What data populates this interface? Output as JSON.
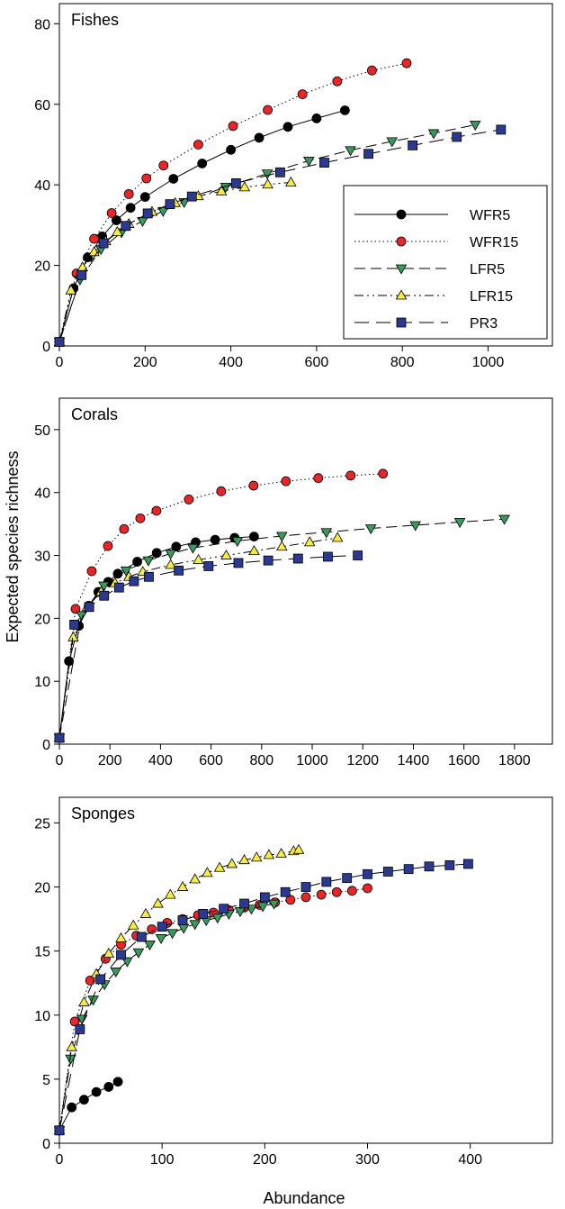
{
  "figure": {
    "ylabel": "Expected species richness",
    "xlabel": "Abundance"
  },
  "series_styles": {
    "WFR5": {
      "marker": "circle",
      "fill": "#000000",
      "dash": ""
    },
    "WFR15": {
      "marker": "circle",
      "fill": "#e8262a",
      "dash": "1.5,3"
    },
    "LFR5": {
      "marker": "triangle-down",
      "fill": "#3a9a5b",
      "dash": "12,6"
    },
    "LFR15": {
      "marker": "triangle-up",
      "fill": "#f5ec45",
      "dash": "10,4,2,4,2,4"
    },
    "PR3": {
      "marker": "square",
      "fill": "#2b3a8f",
      "dash": "16,8"
    }
  },
  "chart_data": [
    {
      "type": "line",
      "title": "Fishes",
      "xlim": [
        0,
        1150
      ],
      "ylim": [
        0,
        85
      ],
      "xticks": [
        0,
        200,
        400,
        600,
        800,
        1000
      ],
      "yticks": [
        0,
        20,
        40,
        60,
        80
      ],
      "legend": {
        "position": "center-right",
        "entries": [
          "WFR5",
          "WFR15",
          "LFR5",
          "LFR15",
          "PR3"
        ]
      },
      "series": [
        {
          "name": "WFR5",
          "x": [
            0,
            33,
            66,
            100,
            133,
            166,
            200,
            266,
            333,
            400,
            466,
            533,
            600,
            666
          ],
          "y": [
            1,
            14.3,
            22,
            27.2,
            31.2,
            34.3,
            37,
            41.5,
            45.3,
            48.7,
            51.7,
            54.4,
            56.5,
            58.5
          ]
        },
        {
          "name": "WFR15",
          "x": [
            0,
            40,
            81,
            122,
            162,
            203,
            243,
            324,
            405,
            486,
            567,
            648,
            729,
            810
          ],
          "y": [
            1,
            18,
            26.6,
            33,
            37.7,
            41.6,
            44.8,
            50,
            54.6,
            58.6,
            62.5,
            65.7,
            68.4,
            70.2
          ]
        },
        {
          "name": "LFR5",
          "x": [
            0,
            48,
            97,
            145,
            194,
            242,
            291,
            388,
            485,
            582,
            679,
            776,
            873,
            970
          ],
          "y": [
            1,
            16.5,
            24,
            28.2,
            31,
            33.5,
            35.7,
            39.5,
            42.8,
            46,
            48.6,
            50.8,
            52.8,
            54.9
          ]
        },
        {
          "name": "LFR15",
          "x": [
            0,
            27,
            54,
            81,
            108,
            135,
            162,
            216,
            270,
            324,
            378,
            432,
            486,
            540
          ],
          "y": [
            1,
            13.8,
            19.5,
            23.3,
            26,
            28.3,
            30.3,
            33.3,
            35.5,
            37.2,
            38.4,
            39.4,
            40.1,
            40.6
          ]
        },
        {
          "name": "PR3",
          "x": [
            0,
            52,
            103,
            155,
            206,
            258,
            309,
            412,
            515,
            618,
            721,
            824,
            927,
            1030
          ],
          "y": [
            1,
            17.6,
            25.5,
            29.8,
            32.9,
            35.2,
            37.1,
            40.4,
            43.1,
            45.5,
            47.7,
            49.8,
            51.9,
            53.7
          ]
        }
      ]
    },
    {
      "type": "line",
      "title": "Corals",
      "xlim": [
        0,
        1950
      ],
      "ylim": [
        0,
        55
      ],
      "xticks": [
        0,
        200,
        400,
        600,
        800,
        1000,
        1200,
        1400,
        1600,
        1800
      ],
      "yticks": [
        0,
        10,
        20,
        30,
        40,
        50
      ],
      "series": [
        {
          "name": "WFR5",
          "x": [
            0,
            38,
            77,
            116,
            154,
            193,
            231,
            308,
            385,
            462,
            539,
            616,
            693,
            770
          ],
          "y": [
            1,
            13.2,
            18.8,
            22,
            24.2,
            25.8,
            27.1,
            29,
            30.4,
            31.4,
            32.1,
            32.5,
            32.8,
            33
          ]
        },
        {
          "name": "WFR15",
          "x": [
            0,
            64,
            128,
            192,
            256,
            320,
            384,
            512,
            640,
            768,
            896,
            1024,
            1152,
            1280
          ],
          "y": [
            1,
            21.5,
            27.5,
            31.5,
            34.2,
            35.9,
            37.1,
            38.9,
            40.2,
            41.1,
            41.8,
            42.3,
            42.7,
            43
          ]
        },
        {
          "name": "LFR5",
          "x": [
            0,
            88,
            176,
            264,
            352,
            440,
            528,
            704,
            880,
            1056,
            1232,
            1408,
            1584,
            1760
          ],
          "y": [
            1,
            20.5,
            25.2,
            27.6,
            29.2,
            30.3,
            31.2,
            32.3,
            33.1,
            33.7,
            34.3,
            34.8,
            35.3,
            35.8
          ]
        },
        {
          "name": "LFR15",
          "x": [
            0,
            55,
            110,
            165,
            220,
            275,
            330,
            440,
            550,
            660,
            770,
            880,
            990,
            1100
          ],
          "y": [
            1,
            17,
            21.8,
            24.2,
            25.6,
            26.6,
            27.4,
            28.5,
            29.3,
            30,
            30.7,
            31.4,
            32.1,
            32.8
          ]
        },
        {
          "name": "PR3",
          "x": [
            0,
            59,
            118,
            177,
            236,
            295,
            354,
            472,
            590,
            708,
            826,
            944,
            1062,
            1180
          ],
          "y": [
            1,
            19,
            21.8,
            23.6,
            24.9,
            25.9,
            26.6,
            27.6,
            28.3,
            28.8,
            29.2,
            29.5,
            29.8,
            30
          ]
        }
      ]
    },
    {
      "type": "line",
      "title": "Sponges",
      "xlim": [
        0,
        480
      ],
      "ylim": [
        0,
        27
      ],
      "xticks": [
        0,
        100,
        200,
        300,
        400
      ],
      "yticks": [
        0,
        5,
        10,
        15,
        20,
        25
      ],
      "series": [
        {
          "name": "WFR5",
          "x": [
            0,
            12,
            24,
            36,
            48,
            57
          ],
          "y": [
            1,
            2.8,
            3.4,
            4,
            4.4,
            4.8
          ]
        },
        {
          "name": "WFR15",
          "x": [
            0,
            15,
            30,
            45,
            60,
            75,
            90,
            105,
            120,
            135,
            150,
            165,
            180,
            195,
            210,
            225,
            240,
            255,
            270,
            285,
            300
          ],
          "y": [
            1,
            9.5,
            12.7,
            14.4,
            15.5,
            16.2,
            16.7,
            17.2,
            17.5,
            17.8,
            18,
            18.2,
            18.4,
            18.6,
            18.8,
            19,
            19.2,
            19.4,
            19.6,
            19.7,
            19.9
          ]
        },
        {
          "name": "LFR5",
          "x": [
            0,
            11,
            22,
            33,
            44,
            55,
            66,
            77,
            88,
            99,
            110,
            121,
            132,
            143,
            154,
            165,
            176,
            187,
            198,
            209
          ],
          "y": [
            1,
            6.6,
            9.7,
            11.2,
            12.4,
            13.4,
            14.2,
            14.9,
            15.5,
            16,
            16.4,
            16.8,
            17.1,
            17.4,
            17.6,
            17.9,
            18.1,
            18.3,
            18.5,
            18.7
          ]
        },
        {
          "name": "LFR15",
          "x": [
            0,
            12,
            24,
            36,
            48,
            60,
            72,
            84,
            96,
            108,
            120,
            132,
            144,
            156,
            168,
            180,
            192,
            204,
            216,
            228,
            233
          ],
          "y": [
            1,
            7.5,
            11,
            13.2,
            14.8,
            16,
            17,
            17.9,
            18.7,
            19.4,
            20,
            20.6,
            21.1,
            21.5,
            21.8,
            22.1,
            22.3,
            22.5,
            22.6,
            22.8,
            22.9
          ]
        },
        {
          "name": "PR3",
          "x": [
            0,
            20,
            40,
            60,
            80,
            100,
            120,
            140,
            160,
            180,
            200,
            220,
            240,
            260,
            280,
            300,
            320,
            340,
            360,
            380,
            398
          ],
          "y": [
            1,
            8.9,
            12.8,
            14.7,
            16.1,
            16.9,
            17.4,
            17.9,
            18.3,
            18.7,
            19.2,
            19.6,
            20,
            20.4,
            20.7,
            21,
            21.2,
            21.4,
            21.6,
            21.7,
            21.8
          ]
        }
      ]
    }
  ]
}
